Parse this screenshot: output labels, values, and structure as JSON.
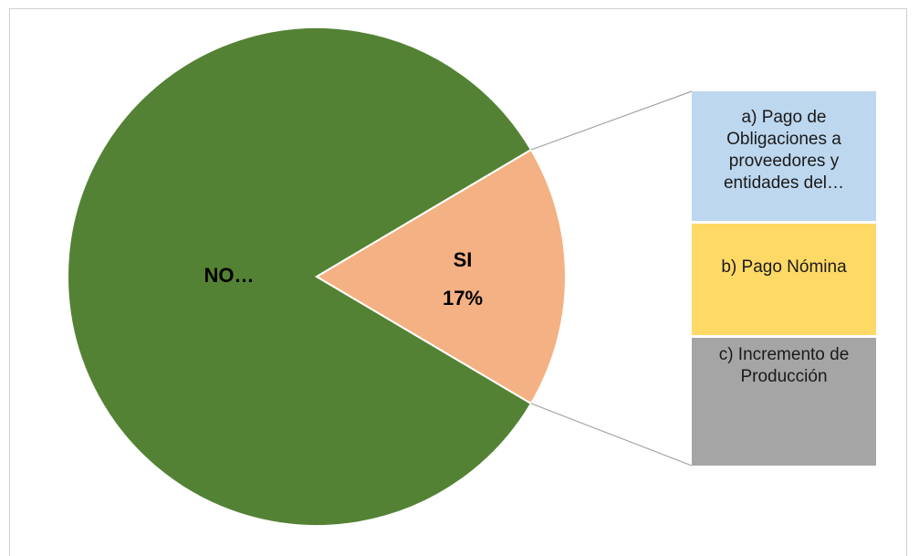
{
  "title_fragment": "",
  "chart_data": {
    "type": "pie",
    "subtype": "bar-of-pie",
    "slices": [
      {
        "label": "NO…",
        "value": 83,
        "color": "#548235"
      },
      {
        "label": "SI",
        "value": 17,
        "display_value": "17%",
        "color": "#F4B183"
      }
    ],
    "breakdown_of": "SI",
    "secondary_bar": [
      {
        "label_lines": [
          "a) Pago de",
          "Obligaciones a",
          "proveedores y",
          "entidades del…"
        ],
        "share": 0.35,
        "color": "#BDD7EE"
      },
      {
        "label_lines": [
          "b) Pago Nómina"
        ],
        "share": 0.305,
        "color": "#FFD966"
      },
      {
        "label_lines": [
          "c) Incremento de",
          "Producción"
        ],
        "share": 0.345,
        "color": "#A5A5A5"
      }
    ],
    "connector_color": "#A5A5A5",
    "legend": "none"
  }
}
